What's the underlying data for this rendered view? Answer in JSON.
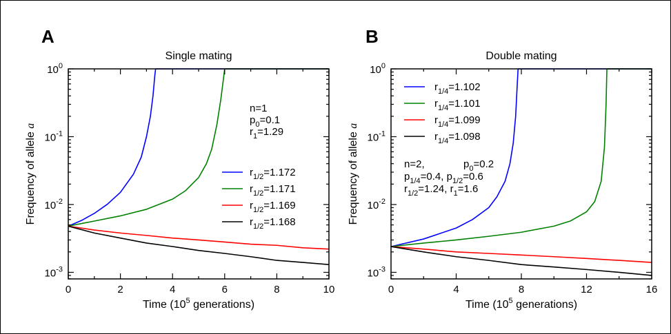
{
  "chart_data": [
    {
      "panel_letter": "A",
      "type": "line",
      "title": "Single mating",
      "xlabel": "Time (10",
      "xlabel_sup": "5",
      "xlabel_tail": " generations)",
      "ylabel": "Frequency of allele ",
      "ylabel_italic": "a",
      "xlim": [
        0,
        10
      ],
      "ylim": [
        0.0008,
        1
      ],
      "yscale": "log",
      "x_ticks": [
        "0",
        "2",
        "4",
        "6",
        "8",
        "10"
      ],
      "x_tick_values": [
        0,
        2,
        4,
        6,
        8,
        10
      ],
      "y_ticks": [
        {
          "base": "10",
          "exp": "0",
          "value": 1
        },
        {
          "base": "10",
          "exp": "-1",
          "value": 0.1
        },
        {
          "base": "10",
          "exp": "-2",
          "value": 0.01
        },
        {
          "base": "10",
          "exp": "-3",
          "value": 0.001
        }
      ],
      "params": [
        {
          "base": "n=1",
          "sub": "",
          "tail": ""
        },
        {
          "base": "p",
          "sub": "0",
          "tail": "=0.1"
        },
        {
          "base": "r",
          "sub": "1",
          "tail": "=1.29"
        }
      ],
      "legend_position": "right",
      "series": [
        {
          "name_base": "r",
          "name_sub": "1/2",
          "name_tail": "=1.172",
          "color": "#0000ff",
          "x": [
            0,
            0.5,
            1,
            1.5,
            2,
            2.5,
            2.8,
            3.0,
            3.15,
            3.25,
            3.32,
            3.35,
            10
          ],
          "y": [
            0.0048,
            0.0058,
            0.0074,
            0.0101,
            0.0151,
            0.028,
            0.05,
            0.1,
            0.2,
            0.4,
            0.8,
            1,
            1
          ]
        },
        {
          "name_base": "r",
          "name_sub": "1/2",
          "name_tail": "=1.171",
          "color": "#008000",
          "x": [
            0,
            1,
            2,
            3,
            4,
            4.5,
            5,
            5.3,
            5.5,
            5.7,
            5.85,
            5.95,
            6.0,
            10
          ],
          "y": [
            0.0048,
            0.0057,
            0.0068,
            0.0085,
            0.012,
            0.016,
            0.025,
            0.04,
            0.065,
            0.15,
            0.35,
            0.7,
            1,
            1
          ]
        },
        {
          "name_base": "r",
          "name_sub": "1/2",
          "name_tail": "=1.169",
          "color": "#ff0000",
          "x": [
            0,
            1,
            2,
            3,
            4,
            5,
            6,
            7,
            8,
            9,
            10
          ],
          "y": [
            0.0048,
            0.0042,
            0.0038,
            0.0035,
            0.0032,
            0.003,
            0.0028,
            0.0026,
            0.0025,
            0.0023,
            0.0022
          ]
        },
        {
          "name_base": "r",
          "name_sub": "1/2",
          "name_tail": "=1.168",
          "color": "#000000",
          "x": [
            0,
            1,
            2,
            3,
            4,
            5,
            6,
            7,
            8,
            9,
            10
          ],
          "y": [
            0.0048,
            0.0038,
            0.0032,
            0.0027,
            0.0024,
            0.0021,
            0.0019,
            0.0017,
            0.0015,
            0.0014,
            0.0013
          ]
        }
      ]
    },
    {
      "panel_letter": "B",
      "type": "line",
      "title": "Double mating",
      "xlabel": "Time (10",
      "xlabel_sup": "5",
      "xlabel_tail": " generations)",
      "ylabel": "Frequency of allele ",
      "ylabel_italic": "a",
      "xlim": [
        0,
        16
      ],
      "ylim": [
        0.0008,
        1
      ],
      "yscale": "log",
      "x_ticks": [
        "0",
        "4",
        "8",
        "12",
        "16"
      ],
      "x_tick_values": [
        0,
        4,
        8,
        12,
        16
      ],
      "y_ticks": [
        {
          "base": "10",
          "exp": "0",
          "value": 1
        },
        {
          "base": "10",
          "exp": "-1",
          "value": 0.1
        },
        {
          "base": "10",
          "exp": "-2",
          "value": 0.01
        },
        {
          "base": "10",
          "exp": "-3",
          "value": 0.001
        }
      ],
      "params": [
        {
          "parts": [
            {
              "t": "n=2,",
              "s": ""
            }
          ]
        },
        {
          "parts": [
            {
              "t": "p",
              "s": "0"
            },
            {
              "t": "=0.2",
              "s": ""
            }
          ]
        },
        {
          "parts": [
            {
              "t": "p",
              "s": "1/4"
            },
            {
              "t": "=0.4, p",
              "s": "1/2"
            },
            {
              "t": "=0.6",
              "s": ""
            }
          ]
        },
        {
          "parts": [
            {
              "t": "r",
              "s": "1/2"
            },
            {
              "t": "=1.24, r",
              "s": "1"
            },
            {
              "t": "=1.6",
              "s": ""
            }
          ]
        }
      ],
      "legend_position": "top-left",
      "series": [
        {
          "name_base": "r",
          "name_sub": "1/4",
          "name_tail": "=1.102",
          "color": "#0000ff",
          "x": [
            0,
            2,
            4,
            5,
            6,
            6.5,
            7,
            7.3,
            7.5,
            7.65,
            7.75,
            7.8,
            16
          ],
          "y": [
            0.0024,
            0.0031,
            0.0045,
            0.006,
            0.009,
            0.013,
            0.022,
            0.04,
            0.08,
            0.2,
            0.6,
            1,
            1
          ]
        },
        {
          "name_base": "r",
          "name_sub": "1/4",
          "name_tail": "=1.101",
          "color": "#008000",
          "x": [
            0,
            2,
            4,
            6,
            8,
            10,
            11,
            12,
            12.5,
            12.9,
            13.1,
            13.2,
            13.25,
            16
          ],
          "y": [
            0.0024,
            0.0027,
            0.003,
            0.0034,
            0.0039,
            0.0048,
            0.0057,
            0.0078,
            0.011,
            0.022,
            0.07,
            0.3,
            1,
            1
          ]
        },
        {
          "name_base": "r",
          "name_sub": "1/4",
          "name_tail": "=1.099",
          "color": "#ff0000",
          "x": [
            0,
            2,
            4,
            6,
            8,
            10,
            12,
            14,
            16
          ],
          "y": [
            0.0024,
            0.0022,
            0.002,
            0.0019,
            0.0018,
            0.0017,
            0.0016,
            0.0015,
            0.0014
          ]
        },
        {
          "name_base": "r",
          "name_sub": "1/4",
          "name_tail": "=1.098",
          "color": "#000000",
          "x": [
            0,
            2,
            4,
            6,
            8,
            10,
            12,
            14,
            16
          ],
          "y": [
            0.0024,
            0.002,
            0.0017,
            0.0015,
            0.0013,
            0.0012,
            0.0011,
            0.001,
            0.0009
          ]
        }
      ]
    }
  ]
}
